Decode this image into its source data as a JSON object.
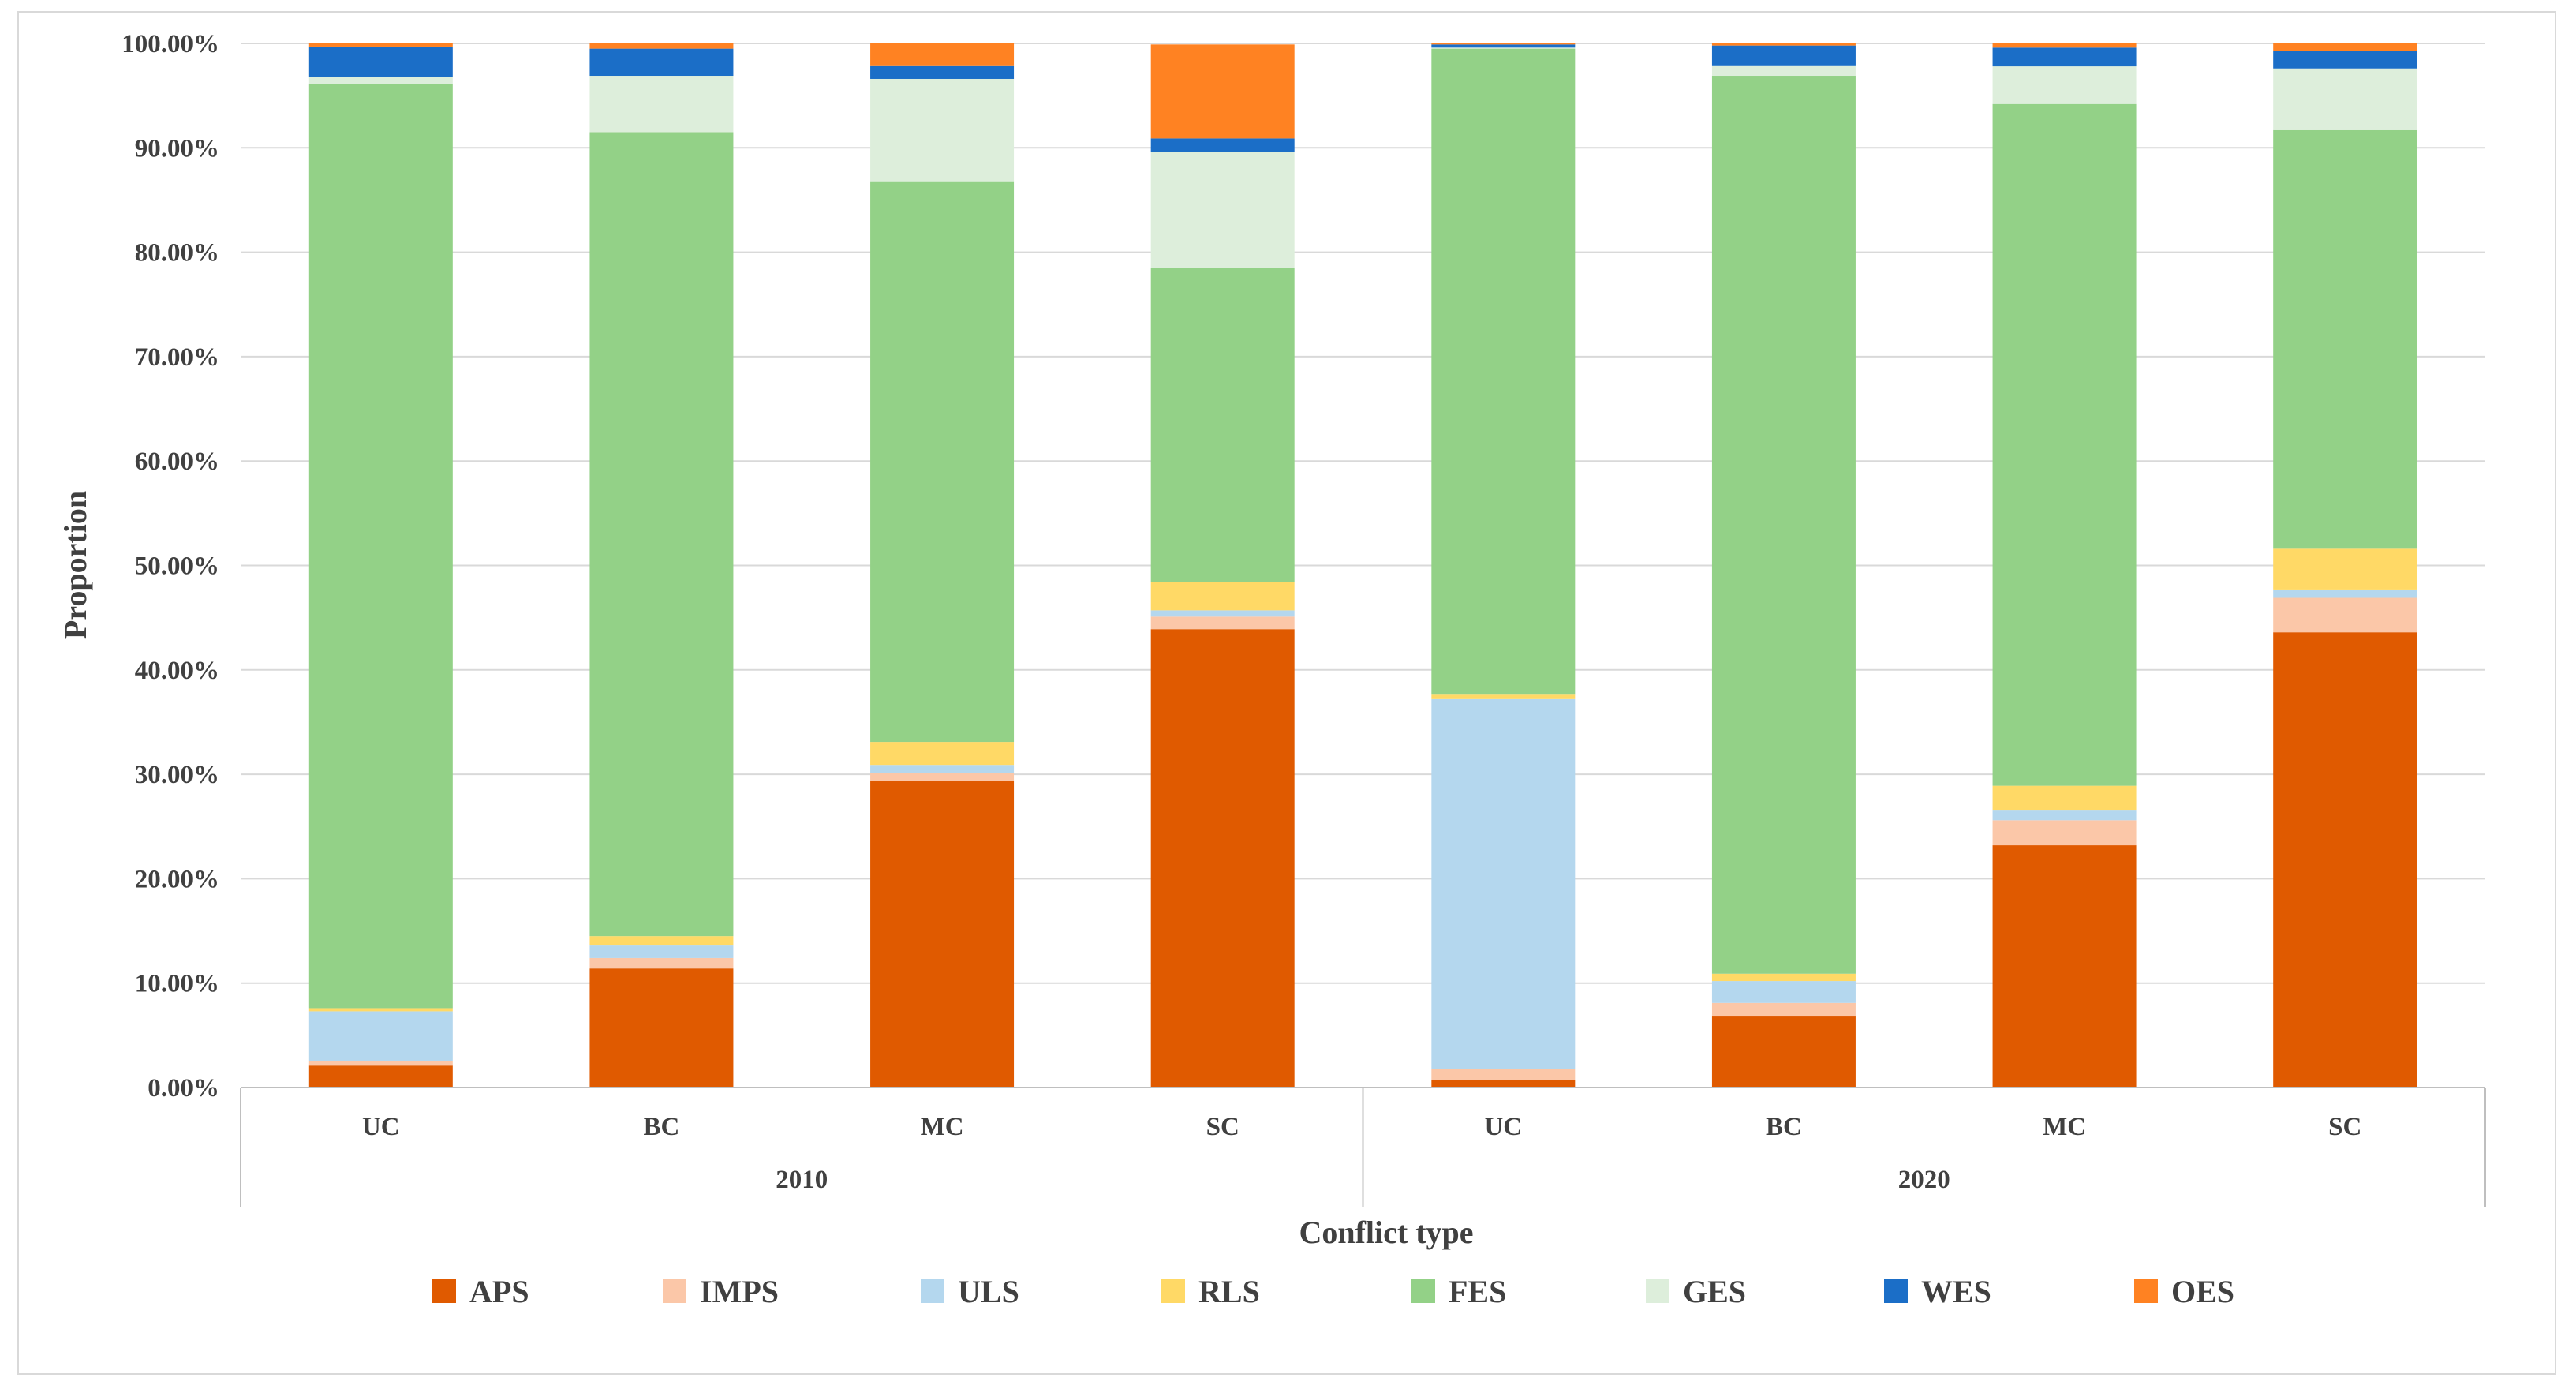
{
  "chart_data": {
    "type": "bar",
    "stacked": true,
    "ylabel": "Proportion",
    "xlabel": "Conflict type",
    "ylim": [
      0,
      100
    ],
    "y_ticks": [
      "0.00%",
      "10.00%",
      "20.00%",
      "30.00%",
      "40.00%",
      "50.00%",
      "60.00%",
      "70.00%",
      "80.00%",
      "90.00%",
      "100.00%"
    ],
    "groups": [
      {
        "label": "2010",
        "categories": [
          "UC",
          "BC",
          "MC",
          "SC"
        ]
      },
      {
        "label": "2020",
        "categories": [
          "UC",
          "BC",
          "MC",
          "SC"
        ]
      }
    ],
    "categories": [
      "UC",
      "BC",
      "MC",
      "SC",
      "UC",
      "BC",
      "MC",
      "SC"
    ],
    "series": [
      {
        "name": "APS",
        "color": "#E05A00",
        "values": [
          2.1,
          11.4,
          29.4,
          43.9,
          0.7,
          6.8,
          23.2,
          43.6
        ]
      },
      {
        "name": "IMPS",
        "color": "#FBC7A8",
        "values": [
          0.4,
          1.0,
          0.7,
          1.2,
          1.1,
          1.3,
          2.4,
          3.3
        ]
      },
      {
        "name": "ULS",
        "color": "#B4D7EE",
        "values": [
          4.8,
          1.2,
          0.8,
          0.6,
          35.4,
          2.1,
          1.0,
          0.8
        ]
      },
      {
        "name": "RLS",
        "color": "#FFD966",
        "values": [
          0.3,
          0.9,
          2.2,
          2.7,
          0.5,
          0.7,
          2.3,
          3.9
        ]
      },
      {
        "name": "FES",
        "color": "#93D187",
        "values": [
          88.5,
          77.0,
          53.7,
          30.1,
          61.8,
          86.0,
          65.3,
          40.1
        ]
      },
      {
        "name": "GES",
        "color": "#DDEEDB",
        "values": [
          0.7,
          5.4,
          9.8,
          11.1,
          0.1,
          1.0,
          3.6,
          5.9
        ]
      },
      {
        "name": "WES",
        "color": "#1B6EC7",
        "values": [
          2.9,
          2.6,
          1.3,
          1.3,
          0.3,
          1.9,
          1.8,
          1.7
        ]
      },
      {
        "name": "OES",
        "color": "#FF8222",
        "values": [
          0.3,
          0.5,
          2.1,
          9.0,
          0.1,
          0.2,
          0.4,
          0.7
        ]
      }
    ],
    "legend_position": "bottom",
    "grid": true
  }
}
